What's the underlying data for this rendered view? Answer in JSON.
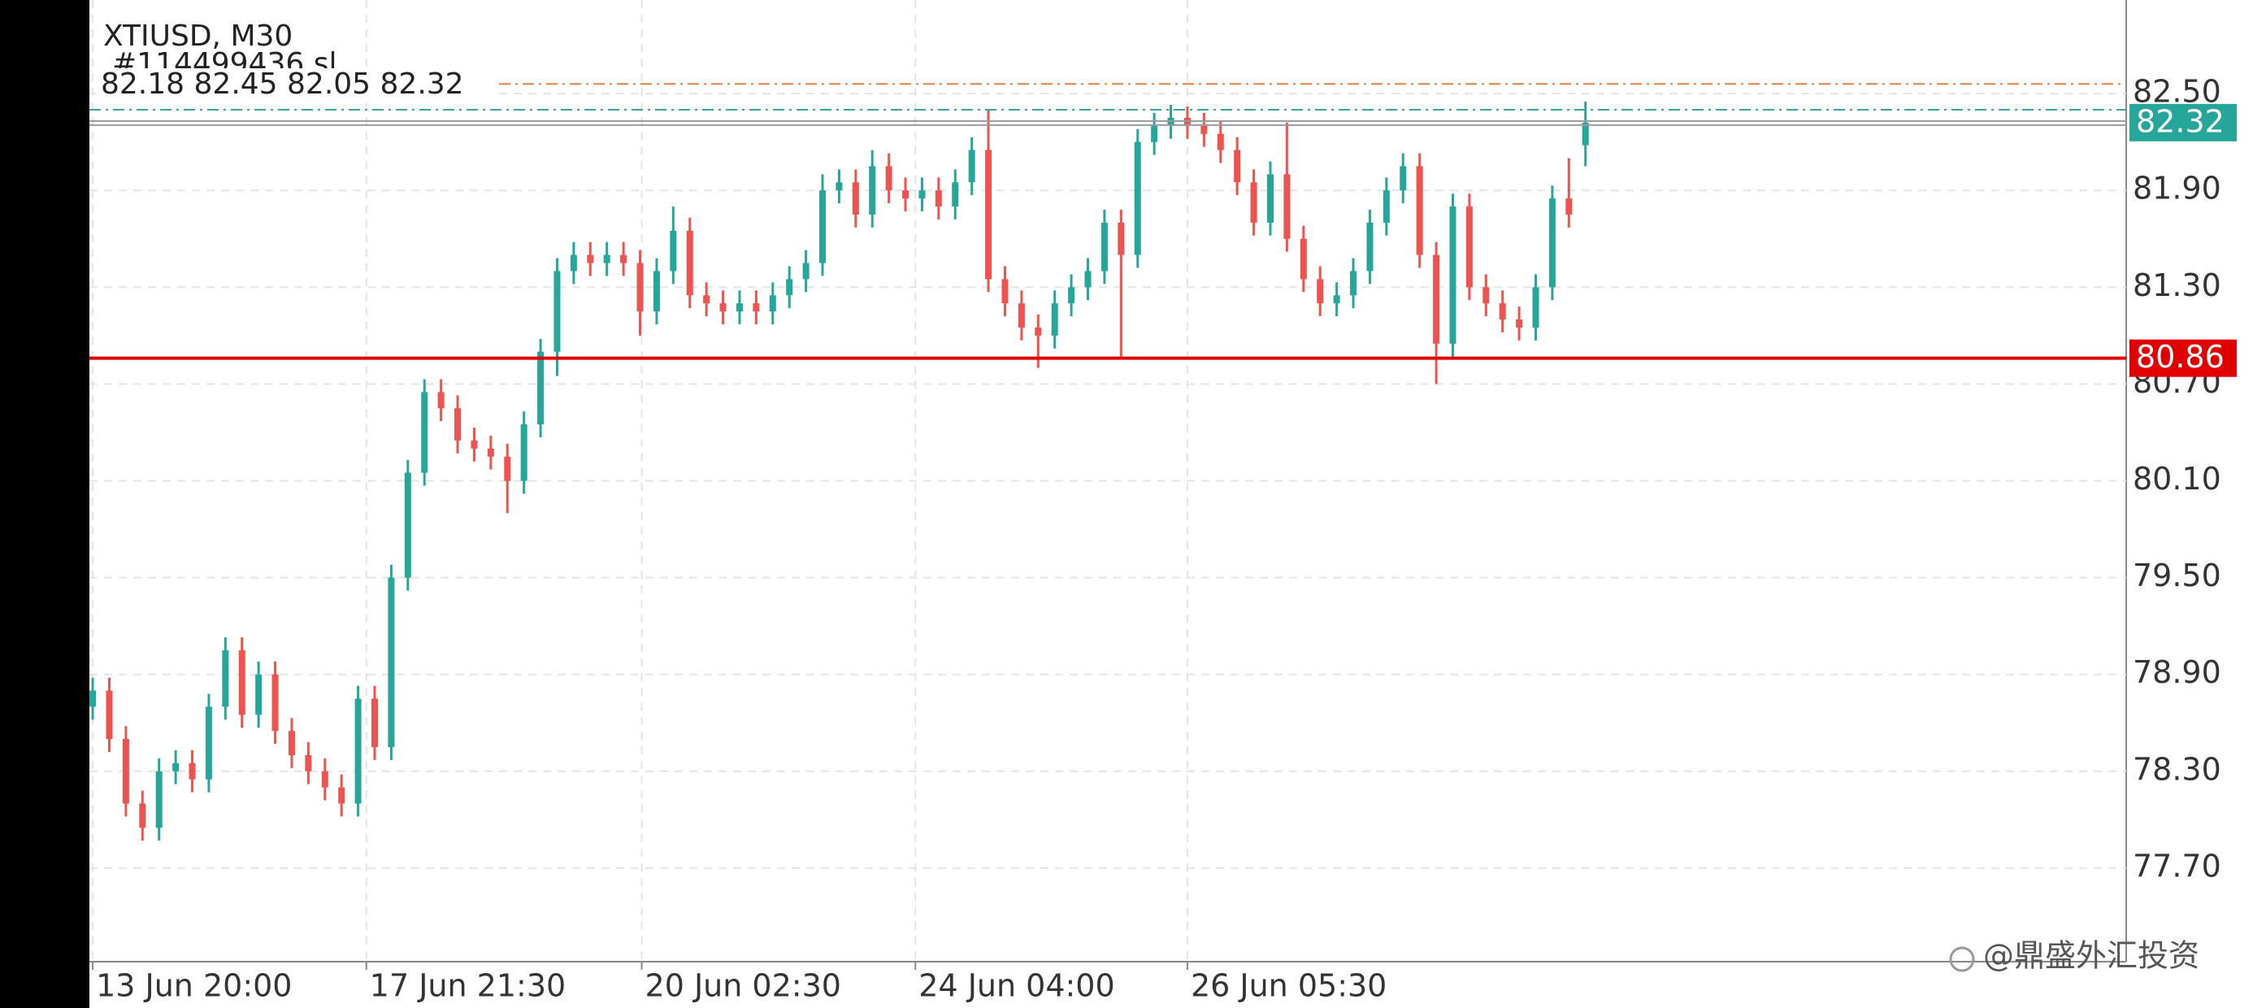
{
  "chart_data": {
    "type": "ohlc",
    "title": "XTIUSD, M30",
    "order_label": "#114499436 sl",
    "ohlc_text": "82.18 82.45 82.05 82.32",
    "watermark": "@鼎盛外汇投资",
    "up_color": "#26a69a",
    "down_color": "#ef5350",
    "open": [
      78.7,
      78.8,
      78.5,
      78.1,
      77.95,
      78.3,
      78.35,
      78.25,
      78.7,
      79.05,
      78.65,
      78.9,
      78.55,
      78.4,
      78.3,
      78.2,
      78.1,
      78.75,
      78.45,
      79.5,
      80.15,
      80.65,
      80.55,
      80.35,
      80.3,
      80.25,
      80.1,
      80.45,
      80.9,
      81.4,
      81.5,
      81.45,
      81.5,
      81.45,
      81.15,
      81.4,
      81.65,
      81.25,
      81.2,
      81.15,
      81.2,
      81.15,
      81.25,
      81.35,
      81.45,
      81.9,
      81.95,
      81.75,
      82.05,
      81.9,
      81.85,
      81.9,
      81.8,
      81.95,
      82.15,
      81.35,
      81.2,
      81.05,
      81.0,
      81.2,
      81.3,
      81.4,
      81.7,
      81.5,
      82.2,
      82.3,
      82.35,
      82.3,
      82.25,
      82.15,
      81.95,
      81.7,
      82.0,
      81.6,
      81.35,
      81.2,
      81.25,
      81.4,
      81.7,
      81.9,
      82.05,
      81.5,
      80.95,
      81.8,
      81.3,
      81.2,
      81.1,
      81.05,
      81.3,
      81.85,
      82.18
    ],
    "high": [
      78.88,
      78.88,
      78.58,
      78.18,
      78.38,
      78.43,
      78.43,
      78.78,
      79.13,
      79.13,
      78.98,
      78.98,
      78.63,
      78.48,
      78.38,
      78.28,
      78.83,
      78.83,
      79.58,
      80.23,
      80.73,
      80.73,
      80.63,
      80.43,
      80.38,
      80.33,
      80.53,
      80.98,
      81.48,
      81.58,
      81.58,
      81.58,
      81.58,
      81.53,
      81.48,
      81.8,
      81.73,
      81.33,
      81.28,
      81.28,
      81.28,
      81.33,
      81.43,
      81.53,
      82.0,
      82.03,
      82.03,
      82.15,
      82.13,
      81.98,
      81.98,
      81.98,
      82.03,
      82.23,
      82.4,
      81.43,
      81.28,
      81.13,
      81.28,
      81.38,
      81.48,
      81.78,
      81.78,
      82.28,
      82.38,
      82.43,
      82.42,
      82.38,
      82.33,
      82.23,
      82.03,
      82.08,
      82.32,
      81.68,
      81.43,
      81.33,
      81.48,
      81.78,
      81.98,
      82.13,
      82.13,
      81.58,
      81.88,
      81.88,
      81.38,
      81.28,
      81.18,
      81.38,
      81.93,
      82.1,
      82.45
    ],
    "low": [
      78.62,
      78.42,
      78.02,
      77.87,
      77.87,
      78.22,
      78.17,
      78.17,
      78.62,
      78.57,
      78.57,
      78.47,
      78.32,
      78.22,
      78.12,
      78.02,
      78.02,
      78.37,
      78.37,
      79.42,
      80.07,
      80.47,
      80.27,
      80.22,
      80.17,
      79.9,
      80.02,
      80.37,
      80.75,
      81.32,
      81.37,
      81.37,
      81.37,
      81.0,
      81.07,
      81.32,
      81.17,
      81.12,
      81.07,
      81.07,
      81.07,
      81.07,
      81.17,
      81.27,
      81.37,
      81.82,
      81.67,
      81.67,
      81.82,
      81.77,
      81.77,
      81.72,
      81.72,
      81.87,
      81.27,
      81.12,
      80.97,
      80.8,
      80.92,
      81.12,
      81.22,
      81.32,
      80.86,
      81.42,
      82.12,
      82.22,
      82.22,
      82.17,
      82.07,
      81.87,
      81.62,
      81.62,
      81.52,
      81.27,
      81.12,
      81.12,
      81.17,
      81.32,
      81.62,
      81.82,
      81.42,
      80.7,
      80.87,
      81.22,
      81.12,
      81.02,
      80.97,
      80.97,
      81.22,
      81.67,
      82.05
    ],
    "close": [
      78.8,
      78.5,
      78.1,
      77.95,
      78.3,
      78.35,
      78.25,
      78.7,
      79.05,
      78.65,
      78.9,
      78.55,
      78.4,
      78.3,
      78.2,
      78.1,
      78.75,
      78.45,
      79.5,
      80.15,
      80.65,
      80.55,
      80.35,
      80.3,
      80.25,
      80.1,
      80.45,
      80.9,
      81.4,
      81.5,
      81.45,
      81.5,
      81.45,
      81.15,
      81.4,
      81.65,
      81.25,
      81.2,
      81.15,
      81.2,
      81.15,
      81.25,
      81.35,
      81.45,
      81.9,
      81.95,
      81.75,
      82.05,
      81.9,
      81.85,
      81.9,
      81.8,
      81.95,
      82.15,
      81.35,
      81.2,
      81.05,
      81.0,
      81.2,
      81.3,
      81.4,
      81.7,
      81.5,
      82.2,
      82.3,
      82.35,
      82.3,
      82.25,
      82.15,
      81.95,
      81.7,
      82.0,
      81.6,
      81.35,
      81.2,
      81.25,
      81.4,
      81.7,
      81.9,
      82.05,
      81.5,
      80.95,
      81.8,
      81.3,
      81.2,
      81.1,
      81.05,
      81.3,
      81.85,
      81.75,
      82.32
    ],
    "xlim": [
      -0.2,
      122.6
    ],
    "xticks": [
      {
        "value": 0,
        "label": "13 Jun 20:00"
      },
      {
        "value": 16.5,
        "label": "17 Jun 21:30"
      },
      {
        "value": 33.1,
        "label": "20 Jun 02:30"
      },
      {
        "value": 49.6,
        "label": "24 Jun 04:00"
      },
      {
        "value": 66.0,
        "label": "26 Jun 05:30"
      }
    ],
    "ylim": [
      77.12,
      83.08
    ],
    "yticks": [
      {
        "value": 82.5,
        "label": "82.50"
      },
      {
        "value": 81.9,
        "label": "81.90"
      },
      {
        "value": 81.3,
        "label": "81.30"
      },
      {
        "value": 80.7,
        "label": "80.70"
      },
      {
        "value": 80.1,
        "label": "80.10"
      },
      {
        "value": 79.5,
        "label": "79.50"
      },
      {
        "value": 78.9,
        "label": "78.90"
      },
      {
        "value": 78.3,
        "label": "78.30"
      },
      {
        "value": 77.7,
        "label": "77.70"
      }
    ],
    "grid": true,
    "current_price": 82.32,
    "current_color": "#26a69a",
    "level": 80.86,
    "level_color": "#e00000",
    "order_lines": [
      {
        "value": 82.56,
        "color": "#e08040"
      },
      {
        "value": 82.4,
        "color": "#3aa0a0"
      }
    ]
  }
}
